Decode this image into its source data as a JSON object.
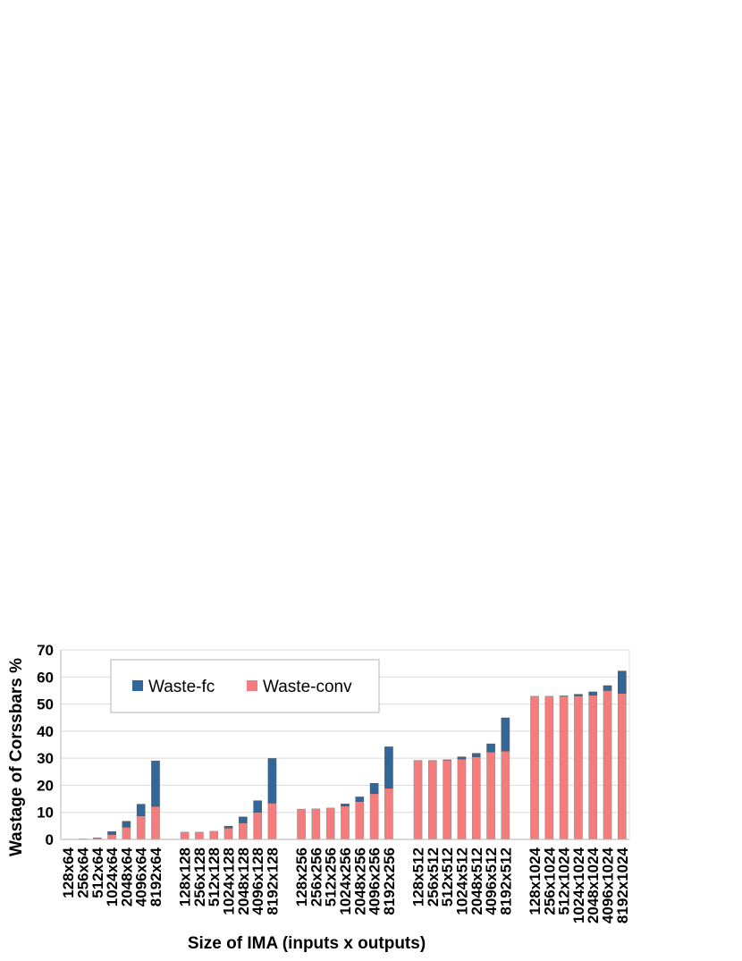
{
  "chart_data": {
    "type": "bar",
    "stacked": true,
    "title": "",
    "xlabel": "Size of IMA (inputs x outputs)",
    "ylabel": "Wastage of Corssbars %",
    "ylim": [
      0,
      70
    ],
    "yticks": [
      0,
      10,
      20,
      30,
      40,
      50,
      60,
      70
    ],
    "grid": true,
    "legend_position": "top-left",
    "groups": [
      {
        "categories": [
          "128x64",
          "256x64",
          "512x64",
          "1024x64",
          "2048x64",
          "4096x64",
          "8192x64"
        ]
      },
      {
        "categories": [
          "128x128",
          "256x128",
          "512x128",
          "1024x128",
          "2048x128",
          "4096x128",
          "8192x128"
        ]
      },
      {
        "categories": [
          "128x256",
          "256x256",
          "512x256",
          "1024x256",
          "2048x256",
          "4096x256",
          "8192x256"
        ]
      },
      {
        "categories": [
          "128x512",
          "256x512",
          "512x512",
          "1024x512",
          "2048x512",
          "4096x512",
          "8192x512"
        ]
      },
      {
        "categories": [
          "128x1024",
          "256x1024",
          "512x1024",
          "1024x1024",
          "2048x1024",
          "4096x1024",
          "8192x1024"
        ]
      }
    ],
    "series": [
      {
        "name": "Waste-conv",
        "color": "#f47c7c",
        "values": [
          0.1,
          0.2,
          0.4,
          1.8,
          4.5,
          8.7,
          12.2,
          2.7,
          2.7,
          3.0,
          4.2,
          6.1,
          10.0,
          13.4,
          11.2,
          11.3,
          11.6,
          12.3,
          14.0,
          16.9,
          18.9,
          29.2,
          29.2,
          29.3,
          29.7,
          30.5,
          32.3,
          32.6,
          52.9,
          52.9,
          52.9,
          53.0,
          53.3,
          55.0,
          53.9
        ]
      },
      {
        "name": "Waste-fc",
        "color": "#336699",
        "values": [
          0.0,
          0.0,
          0.1,
          1.1,
          2.2,
          4.3,
          16.8,
          0.0,
          0.0,
          0.0,
          0.7,
          2.2,
          4.3,
          16.5,
          0.0,
          0.0,
          0.0,
          0.8,
          1.7,
          3.8,
          15.3,
          0.0,
          0.0,
          0.1,
          0.8,
          1.3,
          3.0,
          12.3,
          0.0,
          0.0,
          0.1,
          0.6,
          1.2,
          1.8,
          8.3
        ]
      }
    ]
  }
}
